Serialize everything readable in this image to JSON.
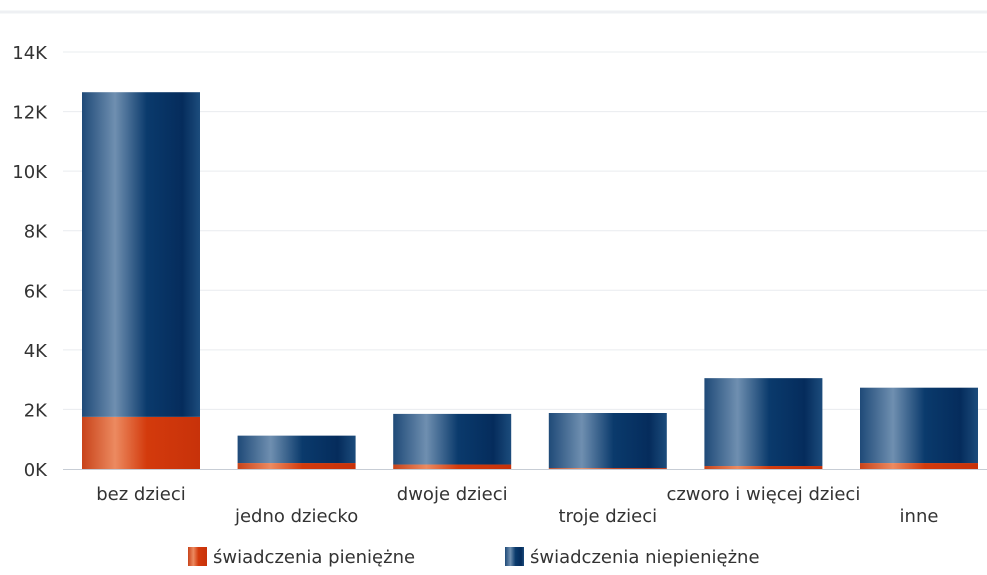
{
  "chart_data": {
    "type": "bar",
    "stacked": true,
    "title": "",
    "xlabel": "",
    "ylabel": "",
    "ylim": [
      0,
      14000
    ],
    "y_ticks": [
      {
        "value": 0,
        "label": "0K"
      },
      {
        "value": 2000,
        "label": "2K"
      },
      {
        "value": 4000,
        "label": "4K"
      },
      {
        "value": 6000,
        "label": "6K"
      },
      {
        "value": 8000,
        "label": "8K"
      },
      {
        "value": 10000,
        "label": "10K"
      },
      {
        "value": 12000,
        "label": "12K"
      },
      {
        "value": 14000,
        "label": "14K"
      }
    ],
    "categories": [
      "bez dzieci",
      "jedno dziecko",
      "dwoje dzieci",
      "troje dzieci",
      "czworo i więcej dzieci",
      "inne"
    ],
    "series": [
      {
        "name": "świadczenia pieniężne",
        "values": [
          1750,
          200,
          150,
          30,
          100,
          200
        ],
        "color": "#d23a0e"
      },
      {
        "name": "świadczenia niepieniężne",
        "values": [
          10900,
          920,
          1700,
          1850,
          2950,
          2530
        ],
        "color": "#07336a"
      }
    ],
    "grid": true,
    "legend_position": "bottom"
  }
}
